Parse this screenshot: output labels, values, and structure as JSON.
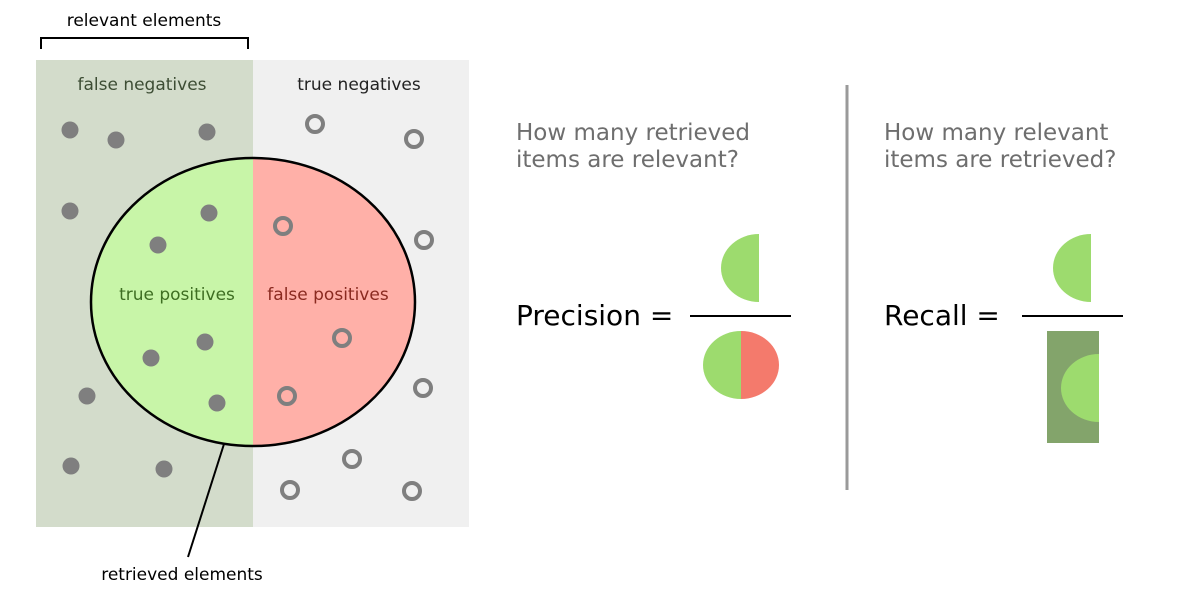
{
  "colors": {
    "relevant_bg": "#d3dccb",
    "irrelevant_bg": "#f0f0f0",
    "true_positive_fill": "#c8f5a8",
    "false_positive_fill": "#ffb0a8",
    "dot": "#7f7f7f",
    "half_green": "#9ddb6e",
    "half_red": "#f47a6c",
    "recall_rect": "#83a46b",
    "divider": "#9a9a9a",
    "label_fn": "#3d4d34",
    "label_tn": "#222222",
    "label_tp": "#3e6e22",
    "label_fp": "#8a2a20"
  },
  "labels": {
    "relevant_elements": "relevant elements",
    "retrieved_elements": "retrieved elements",
    "false_negatives": "false negatives",
    "true_negatives": "true negatives",
    "true_positives": "true positives",
    "false_positives": "false positives"
  },
  "precision": {
    "question_line1": "How many retrieved",
    "question_line2": "items are relevant?",
    "formula": "Precision ="
  },
  "recall": {
    "question_line1": "How many relevant",
    "question_line2": "items are retrieved?",
    "formula": "Recall ="
  }
}
